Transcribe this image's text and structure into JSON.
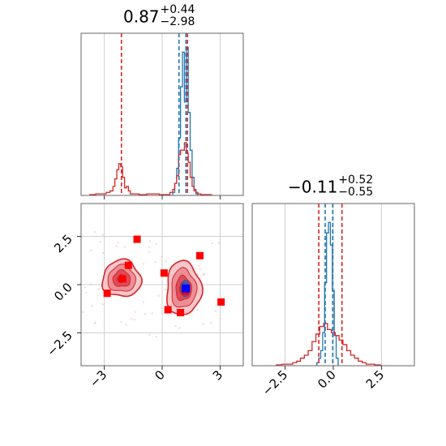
{
  "chart_data": {
    "type": "corner",
    "panels": [
      {
        "id": "p1",
        "kind": "1d-histogram",
        "title": {
          "value": "0.87",
          "sup": "+0.44",
          "sub": "−2.98"
        },
        "xlim": [
          -4.2,
          4.2
        ],
        "xgrid": [
          -3,
          0,
          3
        ],
        "vlines": [
          {
            "x": -2.11,
            "color": "#d62728"
          },
          {
            "x": 0.87,
            "color": "#1f77b4"
          },
          {
            "x": 1.23,
            "color": "#1f77b4"
          },
          {
            "x": 1.31,
            "color": "#d62728"
          }
        ],
        "series": [
          {
            "color": "#1f77b4",
            "bin_centers": [
              0.6,
              0.7,
              0.8,
              0.9,
              1.0,
              1.1,
              1.2,
              1.3,
              1.4,
              1.5,
              1.6,
              1.7,
              1.8
            ],
            "heights": [
              0.02,
              0.08,
              0.18,
              0.38,
              0.72,
              0.95,
              0.62,
              0.98,
              0.55,
              0.3,
              0.12,
              0.04,
              0.01
            ]
          },
          {
            "color": "#d62728",
            "bin_centers": [
              -3.6,
              -3.3,
              -3.0,
              -2.8,
              -2.6,
              -2.5,
              -2.4,
              -2.3,
              -2.2,
              -2.1,
              -2.0,
              -1.9,
              -1.8,
              -1.7,
              -1.6,
              -1.4,
              -1.0,
              -0.6,
              0.3,
              0.5,
              0.6,
              0.7,
              0.8,
              0.9,
              1.0,
              1.1,
              1.2,
              1.3,
              1.4,
              1.5,
              1.6,
              1.7,
              1.8,
              1.9,
              2.1,
              2.4
            ],
            "heights": [
              0.005,
              0.01,
              0.01,
              0.02,
              0.03,
              0.06,
              0.11,
              0.17,
              0.21,
              0.19,
              0.12,
              0.05,
              0.06,
              0.03,
              0.01,
              0.01,
              0.005,
              0.01,
              0.005,
              0.02,
              0.04,
              0.08,
              0.13,
              0.27,
              0.3,
              0.3,
              0.35,
              0.28,
              0.22,
              0.12,
              0.06,
              0.03,
              0.02,
              0.01,
              0.005,
              0.005
            ]
          }
        ]
      },
      {
        "id": "p2",
        "kind": "1d-histogram",
        "title": {
          "value": "−0.11",
          "sup": "+0.52",
          "sub": "−0.55"
        },
        "xlim": [
          -4.2,
          4.2
        ],
        "xgrid": [
          -2.5,
          0,
          2.5
        ],
        "xticks": [
          -2.5,
          0,
          2.5
        ],
        "xticklabels": [
          "−2.5",
          "0.0",
          "2.5"
        ],
        "vlines": [
          {
            "x": -0.75,
            "color": "#d62728"
          },
          {
            "x": -0.42,
            "color": "#1f77b4"
          },
          {
            "x": -0.03,
            "color": "#1f77b4"
          },
          {
            "x": 0.45,
            "color": "#d62728"
          }
        ],
        "series": [
          {
            "color": "#1f77b4",
            "bin_centers": [
              -0.8,
              -0.7,
              -0.6,
              -0.5,
              -0.4,
              -0.3,
              -0.2,
              -0.1,
              0.0,
              0.1,
              0.2
            ],
            "heights": [
              0.02,
              0.05,
              0.1,
              0.22,
              0.55,
              0.88,
              0.95,
              0.8,
              0.5,
              0.2,
              0.05
            ]
          },
          {
            "color": "#d62728",
            "bin_centers": [
              -2.8,
              -2.5,
              -2.2,
              -2.0,
              -1.8,
              -1.6,
              -1.4,
              -1.2,
              -1.0,
              -0.8,
              -0.6,
              -0.4,
              -0.2,
              0.0,
              0.2,
              0.4,
              0.6,
              0.8,
              1.0,
              1.2,
              1.4,
              1.6,
              1.8,
              2.0,
              2.3
            ],
            "heights": [
              0.005,
              0.01,
              0.01,
              0.02,
              0.03,
              0.05,
              0.07,
              0.1,
              0.16,
              0.21,
              0.26,
              0.28,
              0.24,
              0.22,
              0.2,
              0.17,
              0.14,
              0.1,
              0.07,
              0.05,
              0.03,
              0.02,
              0.01,
              0.01,
              0.005
            ]
          }
        ]
      },
      {
        "id": "p3",
        "kind": "2d-density",
        "xlim": [
          -4.2,
          4.2
        ],
        "ylim": [
          -4.2,
          4.2
        ],
        "xgrid": [
          -3,
          0,
          3
        ],
        "ygrid": [
          -2.5,
          0,
          2.5
        ],
        "xticks": [
          -3,
          0,
          3
        ],
        "xticklabels": [
          "−3",
          "0",
          "3"
        ],
        "yticks": [
          -2.5,
          0,
          2.5
        ],
        "yticklabels": [
          "−2.5",
          "0.0",
          "2.5"
        ],
        "fill_color": "#d62728",
        "contour_color": "#d62728",
        "modes": [
          {
            "center": [
              -2.1,
              0.3
            ],
            "size": [
              1.0,
              0.95
            ]
          },
          {
            "center": [
              1.1,
              -0.2
            ],
            "size": [
              0.9,
              1.4
            ]
          }
        ],
        "scatter_points": [
          {
            "x": -1.3,
            "y": 2.35
          },
          {
            "x": -1.75,
            "y": 1.0
          },
          {
            "x": -2.05,
            "y": 0.3
          },
          {
            "x": -2.85,
            "y": -0.45
          },
          {
            "x": 0.1,
            "y": 0.6
          },
          {
            "x": 1.95,
            "y": 1.5
          },
          {
            "x": 1.2,
            "y": -0.35
          },
          {
            "x": 3.05,
            "y": -0.9
          },
          {
            "x": 0.3,
            "y": -1.3
          },
          {
            "x": 0.95,
            "y": -1.45
          }
        ],
        "truth_point": {
          "x": 1.23,
          "y": -0.2
        }
      }
    ]
  }
}
